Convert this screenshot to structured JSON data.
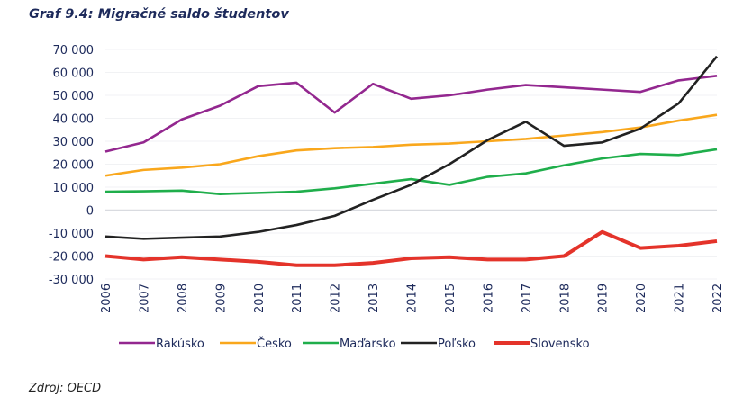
{
  "title": "Graf 9.4: Migračné saldo študentov",
  "source": "Zdroj: OECD",
  "chart_data": {
    "type": "line",
    "title": "Graf 9.4: Migračné saldo študentov",
    "xlabel": "",
    "ylabel": "",
    "ylim": [
      -30000,
      70000
    ],
    "yticks": [
      70000,
      60000,
      50000,
      40000,
      30000,
      20000,
      10000,
      0,
      -10000,
      -20000,
      -30000
    ],
    "ytick_labels": [
      "70 000",
      "60 000",
      "50 000",
      "40 000",
      "30 000",
      "20 000",
      "10 000",
      "0",
      "-10 000",
      "-20 000",
      "-30 000"
    ],
    "grid": true,
    "legend": "bottom",
    "x": [
      "2006",
      "2007",
      "2008",
      "2009",
      "2010",
      "2011",
      "2012",
      "2013",
      "2014",
      "2015",
      "2016",
      "2017",
      "2018",
      "2019",
      "2020",
      "2021",
      "2022"
    ],
    "series": [
      {
        "name": "Rakúsko",
        "color": "#93278f",
        "values": [
          25500,
          29500,
          39500,
          45500,
          54000,
          55500,
          42500,
          55000,
          48500,
          50000,
          52500,
          54500,
          53500,
          52500,
          51500,
          56500,
          58500
        ]
      },
      {
        "name": "Česko",
        "color": "#f9a71c",
        "values": [
          15000,
          17500,
          18500,
          20000,
          23500,
          26000,
          27000,
          27500,
          28500,
          29000,
          30000,
          31000,
          32500,
          34000,
          36000,
          39000,
          41500
        ]
      },
      {
        "name": "Maďarsko",
        "color": "#1fae4b",
        "values": [
          8000,
          8200,
          8500,
          7000,
          7500,
          8000,
          9500,
          11500,
          13500,
          11000,
          14500,
          16000,
          19500,
          22500,
          24500,
          24000,
          26500
        ]
      },
      {
        "name": "Poľsko",
        "color": "#222222",
        "values": [
          -11500,
          -12500,
          -12000,
          -11500,
          -9500,
          -6500,
          -2500,
          4500,
          11000,
          20000,
          30500,
          38500,
          28000,
          29500,
          35500,
          46500,
          67000
        ]
      },
      {
        "name": "Slovensko",
        "color": "#e4332a",
        "values": [
          -20000,
          -21500,
          -20500,
          -21500,
          -22500,
          -24000,
          -24000,
          -23000,
          -21000,
          -20500,
          -21500,
          -21500,
          -20000,
          -9500,
          -16500,
          -15500,
          -13500
        ]
      }
    ]
  }
}
